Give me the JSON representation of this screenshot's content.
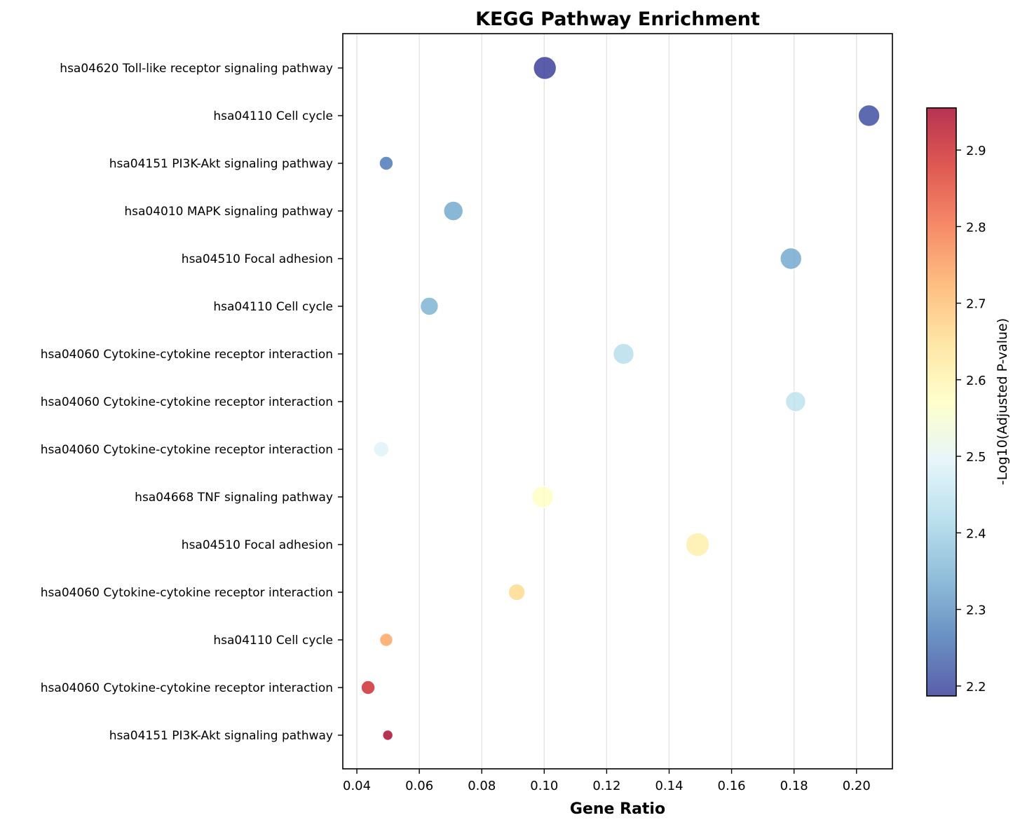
{
  "chart_data": {
    "type": "scatter",
    "title": "KEGG Pathway Enrichment",
    "xlabel": "Gene Ratio",
    "colorbar_label": "-Log10(Adjusted P-value)",
    "xlim": [
      0.0355,
      0.2115
    ],
    "xticks": [
      "0.04",
      "0.06",
      "0.08",
      "0.10",
      "0.12",
      "0.14",
      "0.16",
      "0.18",
      "0.20"
    ],
    "xtick_values": [
      0.04,
      0.06,
      0.08,
      0.1,
      0.12,
      0.14,
      0.16,
      0.18,
      0.2
    ],
    "grid": "vertical",
    "colormap": "RdYlBu_r",
    "color_range": [
      2.187,
      2.955
    ],
    "colorbar_ticks": [
      "2.2",
      "2.3",
      "2.4",
      "2.5",
      "2.6",
      "2.7",
      "2.8",
      "2.9"
    ],
    "colorbar_tick_values": [
      2.2,
      2.3,
      2.4,
      2.5,
      2.6,
      2.7,
      2.8,
      2.9
    ],
    "categories": [
      "hsa04620 Toll-like receptor signaling pathway",
      "hsa04110 Cell cycle",
      "hsa04151 PI3K-Akt signaling pathway",
      "hsa04010 MAPK signaling pathway",
      "hsa04510 Focal adhesion",
      "hsa04110 Cell cycle",
      "hsa04060 Cytokine-cytokine receptor interaction",
      "hsa04060 Cytokine-cytokine receptor interaction",
      "hsa04060 Cytokine-cytokine receptor interaction",
      "hsa04668 TNF signaling pathway",
      "hsa04510 Focal adhesion",
      "hsa04060 Cytokine-cytokine receptor interaction",
      "hsa04110 Cell cycle",
      "hsa04060 Cytokine-cytokine receptor interaction",
      "hsa04151 PI3K-Akt signaling pathway"
    ],
    "x": [
      0.1002,
      0.204,
      0.0494,
      0.0709,
      0.179,
      0.0632,
      0.1254,
      0.1805,
      0.0478,
      0.0995,
      0.1491,
      0.0912,
      0.0494,
      0.0436,
      0.0499
    ],
    "color_values": [
      2.187,
      2.205,
      2.26,
      2.33,
      2.33,
      2.345,
      2.43,
      2.44,
      2.49,
      2.57,
      2.61,
      2.66,
      2.74,
      2.9,
      2.955
    ],
    "size_values": [
      33,
      31,
      20,
      28,
      31,
      26,
      30,
      29,
      22,
      31,
      34,
      24,
      19,
      20,
      15
    ]
  }
}
